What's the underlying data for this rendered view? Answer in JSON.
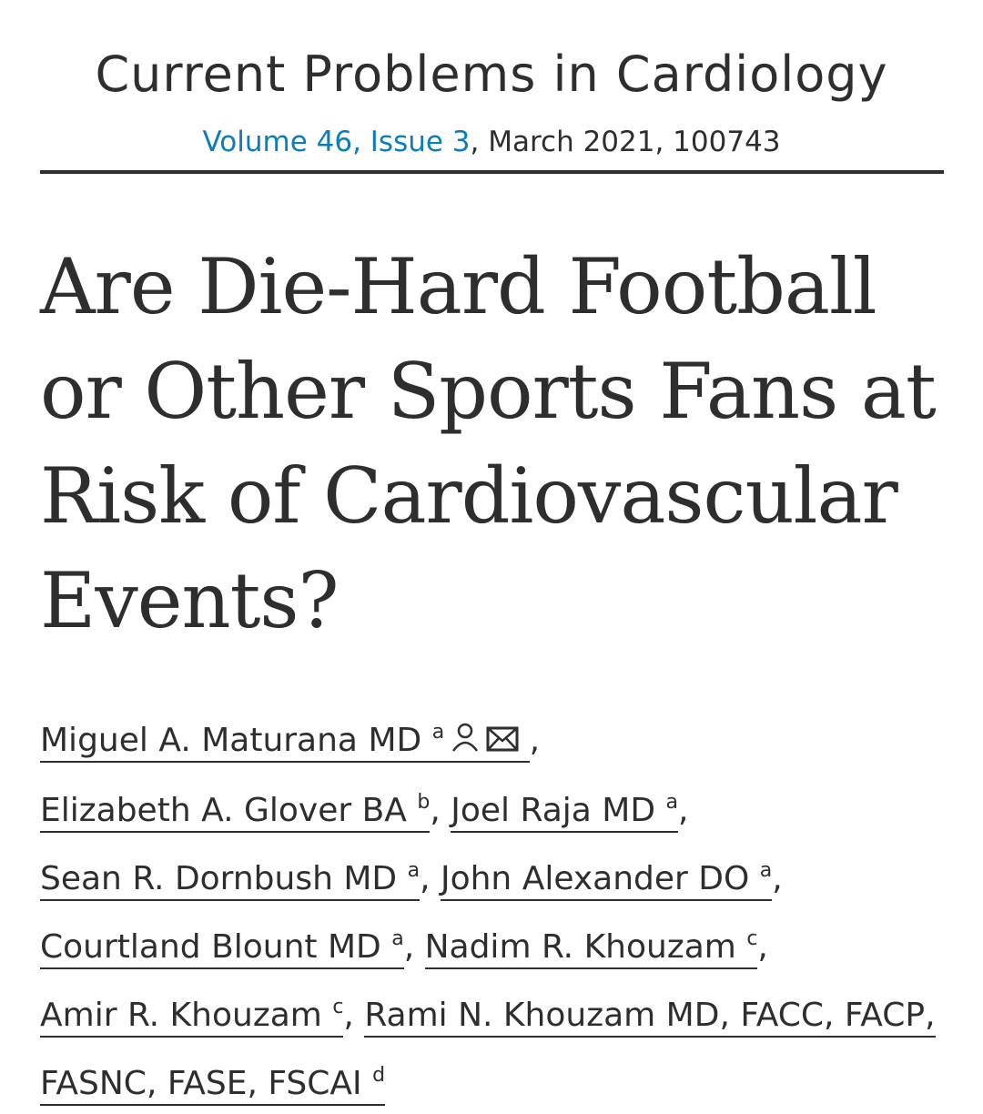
{
  "journal": {
    "name": "Current Problems in Cardiology",
    "volume_link": "Volume 46, Issue 3",
    "date_info": ", March 2021, 100743"
  },
  "article": {
    "title": "Are Die-Hard Football or Other Sports Fans at Risk of Cardiovascular Events?"
  },
  "authors": [
    {
      "name": "Miguel A. Maturana MD",
      "aff": "a",
      "icons": [
        "person-icon",
        "envelope-icon"
      ]
    },
    {
      "name": "Elizabeth A. Glover BA",
      "aff": "b"
    },
    {
      "name": "Joel Raja MD",
      "aff": "a"
    },
    {
      "name": "Sean R. Dornbush MD",
      "aff": "a"
    },
    {
      "name": "John Alexander DO",
      "aff": "a"
    },
    {
      "name": "Courtland Blount MD",
      "aff": "a"
    },
    {
      "name": "Nadim R. Khouzam",
      "aff": "c"
    },
    {
      "name": "Amir R. Khouzam",
      "aff": "c"
    },
    {
      "name": "Rami N. Khouzam MD, FACC, FACP, FASNC, FASE, FSCAI",
      "aff": "d"
    }
  ],
  "colors": {
    "link": "#0c7dbb",
    "text": "#2e2e2e"
  }
}
